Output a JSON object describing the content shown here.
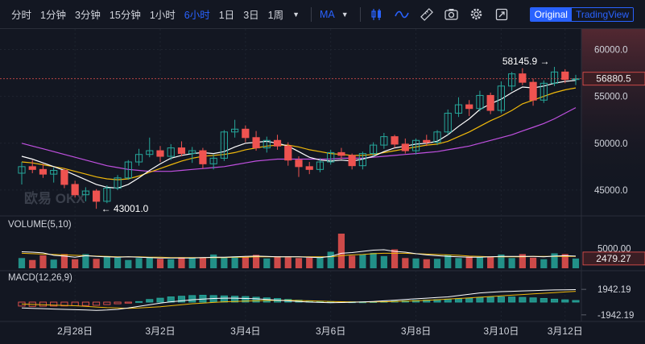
{
  "toolbar": {
    "timeframes": [
      "分时",
      "1分钟",
      "3分钟",
      "15分钟",
      "1小时",
      "6小时",
      "1日",
      "3日",
      "1周"
    ],
    "active_timeframe": "6小时",
    "indicator_label": "MA",
    "icons": [
      "candle-type-icon",
      "line-type-icon",
      "ruler-icon",
      "camera-icon",
      "settings-icon",
      "fullscreen-icon"
    ],
    "view_options": [
      "Original",
      "TradingView"
    ],
    "active_view": "Original"
  },
  "chart_data": {
    "type": "candlestick",
    "watermark": "欧易 OKX",
    "price_axis_ticks": [
      "60000.0",
      "55000.0",
      "50000.0",
      "45000.0"
    ],
    "price_ticks_values": [
      60000,
      55000,
      50000,
      45000
    ],
    "price_range": [
      42500,
      61500
    ],
    "x_tick_labels": [
      "2月28日",
      "3月2日",
      "3月4日",
      "3月6日",
      "3月8日",
      "3月10日",
      "3月12日"
    ],
    "current_price": "56880.5",
    "high_annotation": "58145.9",
    "low_annotation": "43001.0",
    "candles": [
      [
        46800,
        48000,
        45600,
        47500
      ],
      [
        47500,
        48200,
        46800,
        47200
      ],
      [
        47200,
        47800,
        46300,
        46700
      ],
      [
        46700,
        47400,
        45800,
        47100
      ],
      [
        47100,
        47300,
        45200,
        45600
      ],
      [
        45600,
        46000,
        44200,
        44500
      ],
      [
        44500,
        45300,
        43800,
        44900
      ],
      [
        44900,
        45100,
        43001,
        43800
      ],
      [
        43800,
        45500,
        43600,
        45200
      ],
      [
        45200,
        46600,
        45000,
        46300
      ],
      [
        46300,
        48200,
        46100,
        48000
      ],
      [
        48000,
        49400,
        47600,
        48800
      ],
      [
        48800,
        50600,
        48500,
        49200
      ],
      [
        49200,
        49700,
        48000,
        48600
      ],
      [
        48600,
        49900,
        48200,
        49500
      ],
      [
        49500,
        50200,
        48600,
        48900
      ],
      [
        48900,
        49600,
        47900,
        49200
      ],
      [
        49200,
        49500,
        47300,
        47800
      ],
      [
        47800,
        48800,
        47200,
        48400
      ],
      [
        48400,
        51400,
        48100,
        51200
      ],
      [
        51200,
        52500,
        50600,
        51500
      ],
      [
        51500,
        51900,
        50100,
        50600
      ],
      [
        50600,
        51300,
        49200,
        49500
      ],
      [
        49500,
        50700,
        49000,
        50300
      ],
      [
        50300,
        50900,
        49300,
        49700
      ],
      [
        49700,
        50100,
        47600,
        48200
      ],
      [
        48200,
        48600,
        46400,
        47500
      ],
      [
        47500,
        48000,
        46700,
        47200
      ],
      [
        47200,
        48400,
        46900,
        48000
      ],
      [
        48000,
        49300,
        47700,
        49000
      ],
      [
        49000,
        49500,
        48300,
        48700
      ],
      [
        48700,
        48900,
        47200,
        47600
      ],
      [
        47600,
        49100,
        47200,
        48900
      ],
      [
        48900,
        50100,
        48600,
        49800
      ],
      [
        49800,
        51100,
        49400,
        50700
      ],
      [
        50700,
        50900,
        49500,
        49900
      ],
      [
        49900,
        50500,
        48900,
        49200
      ],
      [
        49200,
        50500,
        48800,
        50300
      ],
      [
        50300,
        50900,
        49700,
        50100
      ],
      [
        50100,
        51400,
        49800,
        51200
      ],
      [
        51200,
        53600,
        50900,
        53200
      ],
      [
        53200,
        54900,
        52800,
        54100
      ],
      [
        54100,
        54600,
        52900,
        53700
      ],
      [
        53700,
        55600,
        53400,
        55100
      ],
      [
        55100,
        55400,
        53100,
        53500
      ],
      [
        53500,
        56600,
        53200,
        56100
      ],
      [
        56100,
        57600,
        55600,
        57400
      ],
      [
        57400,
        58000,
        56200,
        56500
      ],
      [
        56500,
        56900,
        54000,
        54600
      ],
      [
        54600,
        56700,
        54300,
        56400
      ],
      [
        56400,
        58145.9,
        56100,
        57600
      ],
      [
        57600,
        57900,
        56400,
        56800
      ],
      [
        56800,
        57300,
        56200,
        56880.5
      ]
    ],
    "ma_short": [
      48600,
      48300,
      47900,
      47500,
      47100,
      46600,
      46100,
      45600,
      45300,
      45200,
      45600,
      46300,
      47100,
      47800,
      48400,
      48700,
      48900,
      49000,
      48900,
      49100,
      49600,
      50000,
      50100,
      50200,
      50000,
      49700,
      49100,
      48500,
      48200,
      48100,
      48200,
      48100,
      48300,
      48600,
      49100,
      49500,
      49700,
      49900,
      50000,
      50200,
      50900,
      51800,
      52600,
      53600,
      54200,
      54700,
      55400,
      56000,
      55900,
      56100,
      56400,
      56600,
      56700
    ],
    "ma_long": [
      48000,
      47900,
      47700,
      47500,
      47300,
      47000,
      46700,
      46400,
      46200,
      46100,
      46200,
      46500,
      46900,
      47300,
      47700,
      48100,
      48400,
      48600,
      48700,
      48800,
      49000,
      49300,
      49500,
      49700,
      49800,
      49800,
      49600,
      49300,
      49100,
      48900,
      48800,
      48700,
      48700,
      48800,
      49000,
      49200,
      49400,
      49600,
      49800,
      49900,
      50200,
      50700,
      51200,
      51800,
      52400,
      52900,
      53500,
      54200,
      54600,
      55000,
      55400,
      55700,
      55900
    ],
    "ma_slow": [
      50000,
      49700,
      49400,
      49100,
      48800,
      48500,
      48200,
      47900,
      47600,
      47400,
      47200,
      47100,
      47000,
      47000,
      47000,
      47100,
      47200,
      47300,
      47400,
      47500,
      47700,
      47900,
      48100,
      48200,
      48300,
      48300,
      48300,
      48300,
      48300,
      48300,
      48400,
      48400,
      48400,
      48500,
      48600,
      48700,
      48800,
      48900,
      49000,
      49100,
      49300,
      49500,
      49700,
      50000,
      50300,
      50600,
      50900,
      51300,
      51700,
      52100,
      52600,
      53200,
      53800
    ],
    "volume": {
      "label": "VOLUME(5,10)",
      "axis_tick": "5000.00",
      "axis_tick_value": 5000,
      "current_value": "2479.27",
      "max": 8800,
      "values": [
        2600,
        2100,
        3300,
        2200,
        3600,
        2300,
        3600,
        2400,
        3000,
        2700,
        2100,
        2600,
        2700,
        2400,
        2300,
        2800,
        2600,
        2700,
        3500,
        2700,
        3000,
        2900,
        3400,
        2500,
        3000,
        2800,
        2600,
        2700,
        2800,
        4200,
        8800,
        3200,
        3500,
        3900,
        3100,
        4800,
        2600,
        2500,
        2300,
        2400,
        3400,
        2600,
        3000,
        2800,
        2900,
        3500,
        2600,
        3600,
        2700,
        2300,
        3800,
        3600,
        2479.27
      ],
      "ma5": [
        4200,
        4100,
        3900,
        3300,
        3100,
        2800,
        3200,
        3000,
        2900,
        2800,
        2900,
        2800,
        2700,
        2600,
        2600,
        2600,
        2600,
        2700,
        2800,
        2800,
        2900,
        3000,
        3100,
        3000,
        2900,
        2900,
        2900,
        2800,
        2700,
        3000,
        3800,
        4000,
        4300,
        4600,
        4700,
        4300,
        4100,
        3700,
        3400,
        3200,
        3000,
        2900,
        2800,
        2800,
        2900,
        3000,
        3000,
        3000,
        3000,
        2900,
        3100,
        3200,
        3100
      ],
      "ma10": [
        3800,
        3700,
        3600,
        3500,
        3400,
        3300,
        3200,
        3100,
        3000,
        2900,
        2900,
        2900,
        2800,
        2800,
        2700,
        2700,
        2700,
        2700,
        2700,
        2700,
        2800,
        2800,
        2900,
        2900,
        2900,
        2900,
        2900,
        2900,
        2900,
        2900,
        3200,
        3400,
        3500,
        3700,
        3800,
        3800,
        3800,
        3700,
        3600,
        3500,
        3400,
        3300,
        3100,
        3000,
        2900,
        2900,
        2900,
        2900,
        3000,
        3000,
        3000,
        3000,
        3000
      ]
    },
    "macd": {
      "label": "MACD(12,26,9)",
      "axis_ticks": [
        "1942.19",
        "-1942.19"
      ],
      "axis_tick_values": [
        1942.19,
        -1942.19
      ],
      "range": 2700,
      "hist": [
        -600,
        -650,
        -620,
        -600,
        -580,
        -560,
        -520,
        -480,
        -380,
        -250,
        -150,
        80,
        400,
        600,
        800,
        900,
        1000,
        1050,
        1000,
        950,
        900,
        850,
        750,
        650,
        550,
        420,
        300,
        200,
        120,
        80,
        60,
        40,
        30,
        60,
        100,
        150,
        200,
        260,
        320,
        380,
        450,
        520,
        600,
        680,
        750,
        800,
        780,
        720,
        650,
        560,
        450,
        350,
        250
      ],
      "dif": [
        -900,
        -950,
        -1000,
        -1050,
        -1100,
        -1150,
        -1200,
        -1250,
        -1200,
        -1100,
        -900,
        -650,
        -400,
        -150,
        50,
        200,
        350,
        450,
        550,
        600,
        600,
        550,
        500,
        400,
        300,
        200,
        100,
        0,
        -50,
        -80,
        -60,
        -20,
        20,
        100,
        200,
        300,
        400,
        500,
        600,
        700,
        800,
        1000,
        1200,
        1400,
        1500,
        1600,
        1650,
        1700,
        1750,
        1800,
        1850,
        1880,
        1900
      ],
      "dea": [
        -300,
        -350,
        -400,
        -450,
        -500,
        -550,
        -650,
        -750,
        -850,
        -900,
        -950,
        -900,
        -800,
        -700,
        -550,
        -400,
        -250,
        -150,
        -50,
        50,
        100,
        150,
        200,
        250,
        280,
        280,
        250,
        200,
        150,
        100,
        60,
        30,
        10,
        20,
        50,
        100,
        150,
        200,
        280,
        350,
        450,
        550,
        650,
        750,
        850,
        950,
        1050,
        1150,
        1250,
        1350,
        1450,
        1550,
        1650
      ]
    }
  },
  "colors": {
    "background": "#131722",
    "up": "#26a69a",
    "down": "#ef5350",
    "ma_short": "#ffffff",
    "ma_long": "#f0b90b",
    "ma_slow": "#c050e0",
    "accent": "#2962ff",
    "grid": "#1f2430",
    "text": "#d1d4dc"
  }
}
